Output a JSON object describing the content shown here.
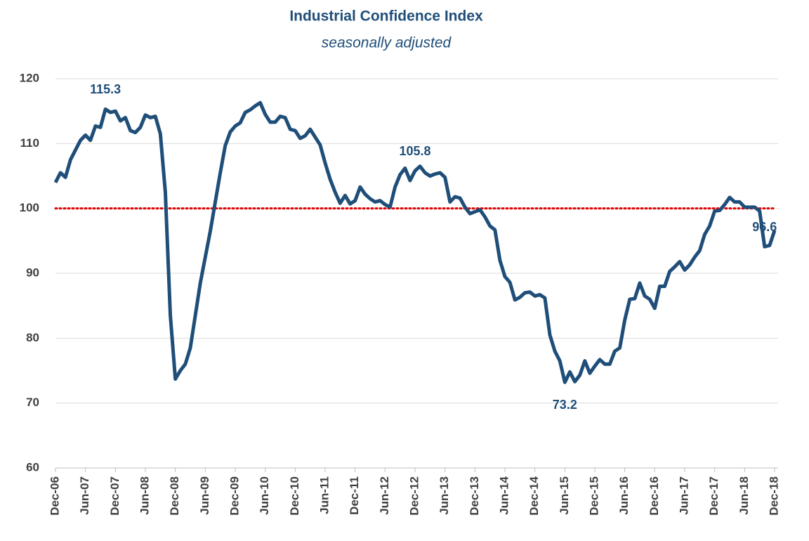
{
  "chart_data": {
    "type": "line",
    "title": "Industrial Confidence Index",
    "subtitle": "seasonally adjusted",
    "categories": [
      "Dec-06",
      null,
      null,
      null,
      null,
      null,
      "Jun-07",
      null,
      null,
      null,
      null,
      null,
      "Dec-07",
      null,
      null,
      null,
      null,
      null,
      "Jun-08",
      null,
      null,
      null,
      null,
      null,
      "Dec-08",
      null,
      null,
      null,
      null,
      null,
      "Jun-09",
      null,
      null,
      null,
      null,
      null,
      "Dec-09",
      null,
      null,
      null,
      null,
      null,
      "Jun-10",
      null,
      null,
      null,
      null,
      null,
      "Dec-10",
      null,
      null,
      null,
      null,
      null,
      "Jun-11",
      null,
      null,
      null,
      null,
      null,
      "Dec-11",
      null,
      null,
      null,
      null,
      null,
      "Jun-12",
      null,
      null,
      null,
      null,
      null,
      "Dec-12",
      null,
      null,
      null,
      null,
      null,
      "Jun-13",
      null,
      null,
      null,
      null,
      null,
      "Dec-13",
      null,
      null,
      null,
      null,
      null,
      "Jun-14",
      null,
      null,
      null,
      null,
      null,
      "Dec-14",
      null,
      null,
      null,
      null,
      null,
      "Jun-15",
      null,
      null,
      null,
      null,
      null,
      "Dec-15",
      null,
      null,
      null,
      null,
      null,
      "Jun-16",
      null,
      null,
      null,
      null,
      null,
      "Dec-16",
      null,
      null,
      null,
      null,
      null,
      "Jun-17",
      null,
      null,
      null,
      null,
      null,
      "Dec-17",
      null,
      null,
      null,
      null,
      null,
      "Jun-18",
      null,
      null,
      null,
      null,
      null,
      "Dec-18"
    ],
    "series": [
      {
        "name": "Industrial Confidence Index",
        "color": "#1f4e79",
        "values": [
          104,
          105.5,
          104.8,
          107.5,
          109,
          110.5,
          111.3,
          110.5,
          112.7,
          112.5,
          115.3,
          114.8,
          115,
          113.5,
          114,
          112,
          111.7,
          112.5,
          114.4,
          114,
          114.2,
          111.5,
          102.5,
          83.5,
          73.7,
          75,
          76,
          78.5,
          83.5,
          88.5,
          92.5,
          96.5,
          101,
          105.5,
          109.7,
          111.8,
          112.7,
          113.2,
          114.8,
          115.2,
          115.8,
          116.3,
          114.5,
          113.3,
          113.3,
          114.2,
          114,
          112.2,
          112,
          110.8,
          111.2,
          112.2,
          111,
          109.8,
          107,
          104.5,
          102.5,
          100.8,
          102,
          100.7,
          101.2,
          103.3,
          102.2,
          101.5,
          101,
          101.2,
          100.6,
          100.2,
          103.3,
          105.2,
          106.2,
          104.3,
          105.8,
          106.5,
          105.5,
          105,
          105.3,
          105.5,
          104.8,
          101,
          101.8,
          101.6,
          100.2,
          99.2,
          99.5,
          99.8,
          98.7,
          97.3,
          96.7,
          92,
          89.5,
          88.6,
          85.9,
          86.3,
          87,
          87.1,
          86.5,
          86.7,
          86.2,
          80.5,
          78,
          76.5,
          73.2,
          74.8,
          73.3,
          74.3,
          76.5,
          74.6,
          75.7,
          76.7,
          76,
          76,
          78,
          78.5,
          82.8,
          86,
          86.1,
          88.5,
          86.5,
          86,
          84.6,
          88,
          88,
          90.3,
          91,
          91.8,
          90.5,
          91.3,
          92.5,
          93.5,
          96,
          97.3,
          99.6,
          99.7,
          100.6,
          101.7,
          101,
          101,
          100.2,
          100.2,
          100.2,
          99.6,
          94.1,
          94.3,
          96.6
        ],
        "value_labels": [
          null,
          null,
          null,
          null,
          null,
          null,
          null,
          null,
          null,
          null,
          "115.3",
          null,
          null,
          null,
          null,
          null,
          null,
          null,
          null,
          null,
          null,
          null,
          null,
          null,
          null,
          null,
          null,
          null,
          null,
          null,
          null,
          null,
          null,
          null,
          null,
          null,
          null,
          null,
          null,
          null,
          null,
          null,
          null,
          null,
          null,
          null,
          null,
          null,
          null,
          null,
          null,
          null,
          null,
          null,
          null,
          null,
          null,
          null,
          null,
          null,
          null,
          null,
          null,
          null,
          null,
          null,
          null,
          null,
          null,
          null,
          null,
          null,
          "105.8",
          null,
          null,
          null,
          null,
          null,
          null,
          null,
          null,
          null,
          null,
          null,
          null,
          null,
          null,
          null,
          null,
          null,
          null,
          null,
          null,
          null,
          null,
          null,
          null,
          null,
          null,
          null,
          null,
          null,
          "73.2",
          null,
          null,
          null,
          null,
          null,
          null,
          null,
          null,
          null,
          null,
          null,
          null,
          null,
          null,
          null,
          null,
          null,
          null,
          null,
          null,
          null,
          null,
          null,
          null,
          null,
          null,
          null,
          null,
          null,
          null,
          null,
          null,
          null,
          null,
          null,
          null,
          null,
          null,
          null,
          "96.6"
        ]
      }
    ],
    "reference_line": {
      "value": 100,
      "color": "#e00000"
    },
    "ylim": [
      60,
      120
    ],
    "yticks": [
      60,
      70,
      80,
      90,
      100,
      110,
      120
    ],
    "grid": true
  }
}
